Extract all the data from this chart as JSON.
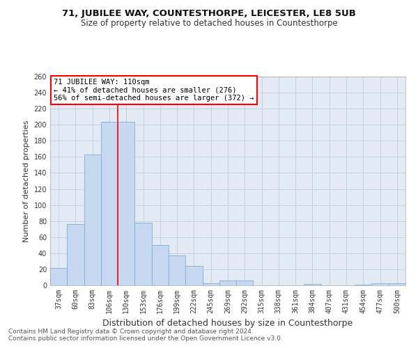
{
  "title": "71, JUBILEE WAY, COUNTESTHORPE, LEICESTER, LE8 5UB",
  "subtitle": "Size of property relative to detached houses in Countesthorpe",
  "xlabel": "Distribution of detached houses by size in Countesthorpe",
  "ylabel": "Number of detached properties",
  "footnote1": "Contains HM Land Registry data © Crown copyright and database right 2024.",
  "footnote2": "Contains public sector information licensed under the Open Government Licence v3.0.",
  "bin_labels": [
    "37sqm",
    "60sqm",
    "83sqm",
    "106sqm",
    "130sqm",
    "153sqm",
    "176sqm",
    "199sqm",
    "222sqm",
    "245sqm",
    "269sqm",
    "292sqm",
    "315sqm",
    "338sqm",
    "361sqm",
    "384sqm",
    "407sqm",
    "431sqm",
    "454sqm",
    "477sqm",
    "500sqm"
  ],
  "bar_heights": [
    22,
    76,
    163,
    204,
    204,
    78,
    50,
    37,
    24,
    3,
    6,
    6,
    0,
    0,
    0,
    2,
    0,
    0,
    1,
    3,
    3
  ],
  "bar_color": "#c5d8ef",
  "bar_edge_color": "#7aaed4",
  "red_line_x": 3.5,
  "annotation_text": "71 JUBILEE WAY: 110sqm\n← 41% of detached houses are smaller (276)\n56% of semi-detached houses are larger (372) →",
  "annotation_box_color": "white",
  "annotation_box_edge_color": "red",
  "red_line_color": "red",
  "ylim": [
    0,
    260
  ],
  "yticks": [
    0,
    20,
    40,
    60,
    80,
    100,
    120,
    140,
    160,
    180,
    200,
    220,
    240,
    260
  ],
  "grid_color": "#c8d0dc",
  "bg_color": "#e4eaf4",
  "title_fontsize": 9.5,
  "subtitle_fontsize": 8.5,
  "xlabel_fontsize": 9,
  "ylabel_fontsize": 8,
  "tick_fontsize": 7,
  "annotation_fontsize": 7.5,
  "footnote_fontsize": 6.5
}
